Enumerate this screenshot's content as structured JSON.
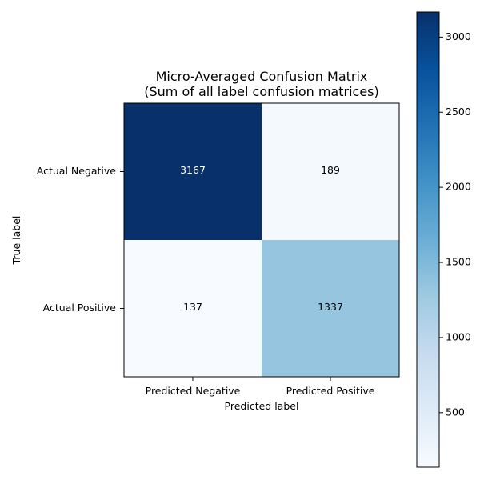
{
  "chart_data": {
    "type": "heatmap",
    "title": "Micro-Averaged Confusion Matrix",
    "subtitle": "(Sum of all label confusion matrices)",
    "xlabel": "Predicted label",
    "ylabel": "True label",
    "x_categories": [
      "Predicted Negative",
      "Predicted Positive"
    ],
    "y_categories": [
      "Actual Negative",
      "Actual Positive"
    ],
    "values": [
      [
        3167,
        189
      ],
      [
        137,
        1337
      ]
    ],
    "colormap": "Blues",
    "colorbar": {
      "min": 137,
      "max": 3167,
      "ticks": [
        500,
        1000,
        1500,
        2000,
        2500,
        3000
      ]
    },
    "grid": false
  }
}
